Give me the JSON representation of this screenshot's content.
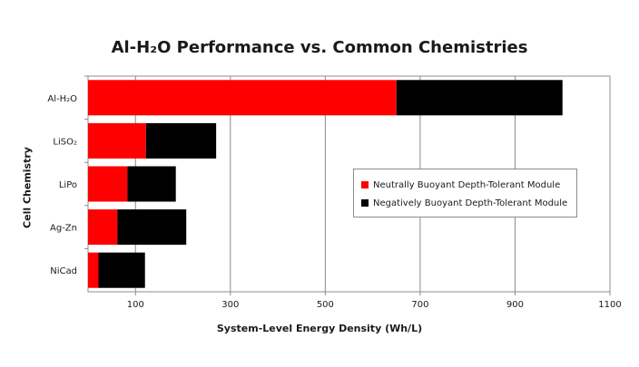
{
  "chart_data": {
    "type": "bar",
    "orientation": "horizontal",
    "stacked": true,
    "title": "Al-H₂O Performance vs. Common Chemistries",
    "xlabel": "System-Level Energy Density (Wh/L)",
    "ylabel": "Cell Chemistry",
    "categories": [
      "Al-H₂O",
      "LiSO₂",
      "LiPo",
      "Ag-Zn",
      "NiCad"
    ],
    "series": [
      {
        "name": "Neutrally Buoyant Depth-Tolerant Module",
        "color": "#ff0000",
        "values": [
          650,
          122,
          83,
          62,
          22
        ]
      },
      {
        "name": "Negatively Buoyant Depth-Tolerant Module",
        "color": "#000000",
        "values": [
          350,
          148,
          102,
          145,
          98
        ]
      }
    ],
    "xlim": [
      0,
      1100
    ],
    "xticks": [
      100,
      300,
      500,
      700,
      900,
      1100
    ],
    "grid": "vertical",
    "legend_position": "center-right"
  }
}
